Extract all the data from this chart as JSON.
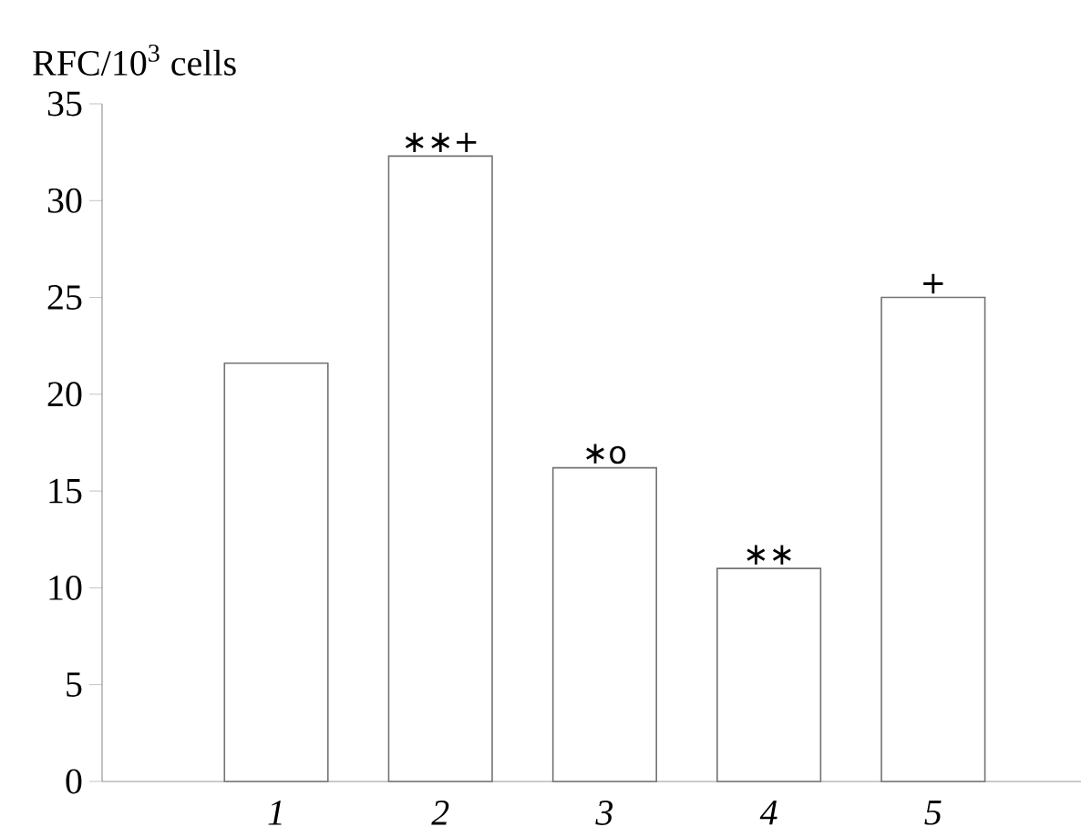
{
  "chart_data": {
    "type": "bar",
    "ylabel": "RFC/10$^{3}$ cells",
    "categories": [
      "1",
      "2",
      "3",
      "4",
      "5"
    ],
    "values": [
      21.6,
      32.3,
      16.2,
      11.0,
      25.0
    ],
    "color": "#ffffff",
    "ylim": [
      0,
      35
    ],
    "yticks": [
      0,
      5,
      10,
      15,
      20,
      25,
      30,
      35
    ],
    "annotations": [
      {
        "text": "∗∗+",
        "x": "2",
        "y": 32.3
      },
      {
        "text": "∗o",
        "x": "3",
        "y": 16.2
      },
      {
        "text": "∗∗",
        "x": "4",
        "y": 11.0
      },
      {
        "text": "+",
        "x": "5",
        "y": 25.0
      }
    ]
  }
}
